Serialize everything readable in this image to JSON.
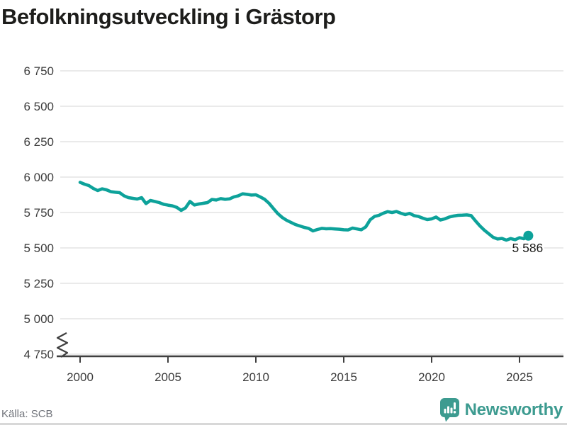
{
  "title": "Befolkningsutveckling i Grästorp",
  "source": {
    "text": "Källa: SCB"
  },
  "branding": {
    "name": "Newsworthy",
    "color": "#3d9b90"
  },
  "chart_data": {
    "type": "line",
    "title": "Befolkningsutveckling i Grästorp",
    "xlabel": "",
    "ylabel": "",
    "ylim": [
      4750,
      6750
    ],
    "grid": "horizontal",
    "axis_break": true,
    "line_color": "#0da29a",
    "label_color": "#1d1d1b",
    "grid_color": "#e4e4e4",
    "axis_color": "#3f3f3f",
    "tick_label_color": "#3c3c3c",
    "x_start": 2000,
    "x_step": 0.25,
    "x_unit": "year (quarterly population count)",
    "end_label": "5 586",
    "end_value": 5586,
    "yticks": [
      {
        "v": 6750,
        "label": "6 750"
      },
      {
        "v": 6500,
        "label": "6 500"
      },
      {
        "v": 6250,
        "label": "6 250"
      },
      {
        "v": 6000,
        "label": "6 000"
      },
      {
        "v": 5750,
        "label": "5 750"
      },
      {
        "v": 5500,
        "label": "5 500"
      },
      {
        "v": 5250,
        "label": "5 250"
      },
      {
        "v": 5000,
        "label": "5 000"
      },
      {
        "v": 4750,
        "label": "4 750"
      }
    ],
    "xticks": [
      {
        "v": 2000,
        "label": "2000"
      },
      {
        "v": 2005,
        "label": "2005"
      },
      {
        "v": 2010,
        "label": "2010"
      },
      {
        "v": 2015,
        "label": "2015"
      },
      {
        "v": 2020,
        "label": "2020"
      },
      {
        "v": 2025,
        "label": "2025"
      }
    ],
    "values": [
      5963,
      5950,
      5940,
      5920,
      5905,
      5917,
      5910,
      5897,
      5893,
      5890,
      5868,
      5855,
      5850,
      5845,
      5855,
      5813,
      5835,
      5828,
      5820,
      5808,
      5802,
      5797,
      5786,
      5765,
      5783,
      5828,
      5803,
      5810,
      5815,
      5820,
      5842,
      5838,
      5848,
      5843,
      5846,
      5860,
      5868,
      5882,
      5878,
      5873,
      5875,
      5860,
      5843,
      5815,
      5778,
      5742,
      5715,
      5695,
      5680,
      5665,
      5655,
      5645,
      5638,
      5620,
      5630,
      5638,
      5635,
      5636,
      5634,
      5632,
      5628,
      5627,
      5640,
      5634,
      5628,
      5648,
      5698,
      5722,
      5730,
      5745,
      5756,
      5750,
      5757,
      5745,
      5735,
      5744,
      5728,
      5722,
      5710,
      5700,
      5705,
      5718,
      5697,
      5705,
      5718,
      5725,
      5730,
      5731,
      5733,
      5728,
      5690,
      5655,
      5625,
      5600,
      5575,
      5563,
      5567,
      5555,
      5566,
      5558,
      5572,
      5565,
      5586
    ]
  }
}
